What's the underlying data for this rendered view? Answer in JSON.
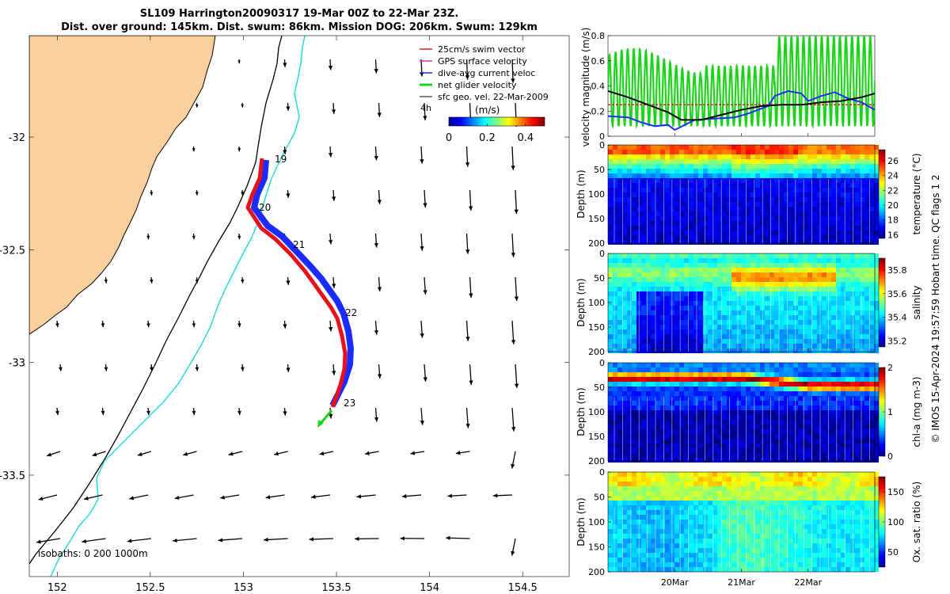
{
  "title": {
    "line1": "SL109 Harrington20090317 19-Mar 00Z to 22-Mar 23Z.",
    "line2": "Dist. over ground: 145km. Dist. swum: 86km. Mission DOG: 206km. Swum: 129km"
  },
  "colors": {
    "land": "#fbcf9e",
    "coast_outline": "#000000",
    "isobath_200": "#2ad9d9",
    "isobath_1000": "#000000",
    "track_swim": "#e8111b",
    "track_current": "#1a2cff",
    "net_velocity": "#1ad41a",
    "geo_arrow": "#000000"
  },
  "map": {
    "legend_items": [
      {
        "label": "25cm/s swim vector",
        "color": "#e41a1c"
      },
      {
        "label": "GPS surface velocity",
        "color": "#d42ad4"
      },
      {
        "label": "dive-avg current veloc",
        "color": "#1a2cff"
      },
      {
        "label": "net glider velocity",
        "color": "#1ad41a"
      },
      {
        "label": "sfc geo. vel. 22-Mar-2009",
        "color": "#000000"
      }
    ],
    "colorbar_unit": "(m/s)",
    "colorbar_ticks": [
      "0",
      "0.2",
      "0.4"
    ],
    "colorbar_range": [
      0,
      0.5
    ],
    "colorbar_side_mark": "4h",
    "isobaths_label": "isobaths: 0  200  1000m",
    "day_labels": [
      "19",
      "20",
      "21",
      "22",
      "23"
    ],
    "lon_ticks": [
      "152",
      "152.5",
      "153",
      "153.5",
      "154",
      "154.5"
    ],
    "lat_ticks": [
      "-32",
      "-32.5",
      "-33",
      "-33.5"
    ],
    "lon_range": [
      151.85,
      154.75
    ],
    "lat_range": [
      -33.95,
      -31.55
    ]
  },
  "chart_data": [
    {
      "type": "line",
      "title": "",
      "ylabel": "velocity magnitude (m/s)",
      "ylim": [
        0,
        0.8
      ],
      "yticks": [
        "0",
        "0.2",
        "0.4",
        "0.6",
        "0.8"
      ],
      "x_range_days": [
        19.0,
        23.0
      ],
      "series": [
        {
          "name": "dive-avg current magnitude",
          "color": "#1a2cff",
          "x": [
            19.0,
            19.3,
            19.5,
            19.7,
            19.9,
            20.0,
            20.3,
            20.6,
            20.9,
            21.1,
            21.4,
            21.5,
            21.7,
            21.9,
            22.0,
            22.2,
            22.4,
            22.6,
            22.8,
            23.0
          ],
          "values": [
            0.16,
            0.15,
            0.11,
            0.08,
            0.09,
            0.05,
            0.13,
            0.14,
            0.15,
            0.18,
            0.24,
            0.32,
            0.36,
            0.34,
            0.28,
            0.32,
            0.35,
            0.3,
            0.27,
            0.21
          ]
        },
        {
          "name": "net glider velocity magnitude",
          "color": "#000000",
          "x": [
            19.0,
            19.3,
            19.6,
            19.9,
            20.1,
            20.4,
            20.7,
            21.0,
            21.3,
            21.6,
            21.9,
            22.2,
            22.5,
            22.8,
            23.0
          ],
          "values": [
            0.36,
            0.31,
            0.25,
            0.19,
            0.13,
            0.13,
            0.17,
            0.21,
            0.24,
            0.25,
            0.25,
            0.27,
            0.28,
            0.31,
            0.34
          ]
        },
        {
          "name": "swim speed",
          "color": "#e41a1c",
          "x": [
            19.0,
            23.0
          ],
          "values": [
            0.25,
            0.25
          ]
        },
        {
          "name": "GPS surface velocity (oscillating)",
          "color": "#1ad41a",
          "amplitude_max": 0.8,
          "amplitude_min": 0.02
        }
      ]
    },
    {
      "type": "heatmap",
      "variable": "temperature",
      "colorbar_label": "temperature (°C)",
      "colorbar_ticks": [
        "16",
        "18",
        "20",
        "22",
        "24",
        "26"
      ],
      "colorbar_range": [
        15.5,
        27.5
      ],
      "ylabel": "Depth (m)",
      "ylim": [
        0,
        200
      ],
      "yticks": [
        "0",
        "50",
        "100",
        "150",
        "200"
      ]
    },
    {
      "type": "heatmap",
      "variable": "salinity",
      "colorbar_label": "salinity",
      "colorbar_ticks": [
        "35.2",
        "35.4",
        "35.6",
        "35.8"
      ],
      "colorbar_range": [
        35.15,
        35.9
      ],
      "ylabel": "Depth (m)",
      "ylim": [
        0,
        200
      ],
      "yticks": [
        "0",
        "50",
        "100",
        "150",
        "200"
      ]
    },
    {
      "type": "heatmap",
      "variable": "chl-a",
      "colorbar_label": "chl-a (mg m-3)",
      "colorbar_ticks": [
        "0",
        "1",
        "2"
      ],
      "colorbar_range": [
        0,
        2
      ],
      "ylabel": "Depth (m)",
      "ylim": [
        0,
        200
      ],
      "yticks": [
        "0",
        "50",
        "100",
        "150",
        "200"
      ]
    },
    {
      "type": "heatmap",
      "variable": "oxygen saturation",
      "colorbar_label": "Ox. sat. ratio (%)",
      "colorbar_ticks": [
        "50",
        "100",
        "150"
      ],
      "colorbar_range": [
        25,
        175
      ],
      "ylabel": "Depth (m)",
      "ylim": [
        0,
        200
      ],
      "yticks": [
        "0",
        "50",
        "100",
        "150",
        "200"
      ],
      "xticks": [
        "20Mar",
        "21Mar",
        "22Mar"
      ]
    }
  ],
  "footer": {
    "credit": "© IMOS 15-Apr-2024 19:57:59 Hobart time. QC flags 1  2"
  }
}
